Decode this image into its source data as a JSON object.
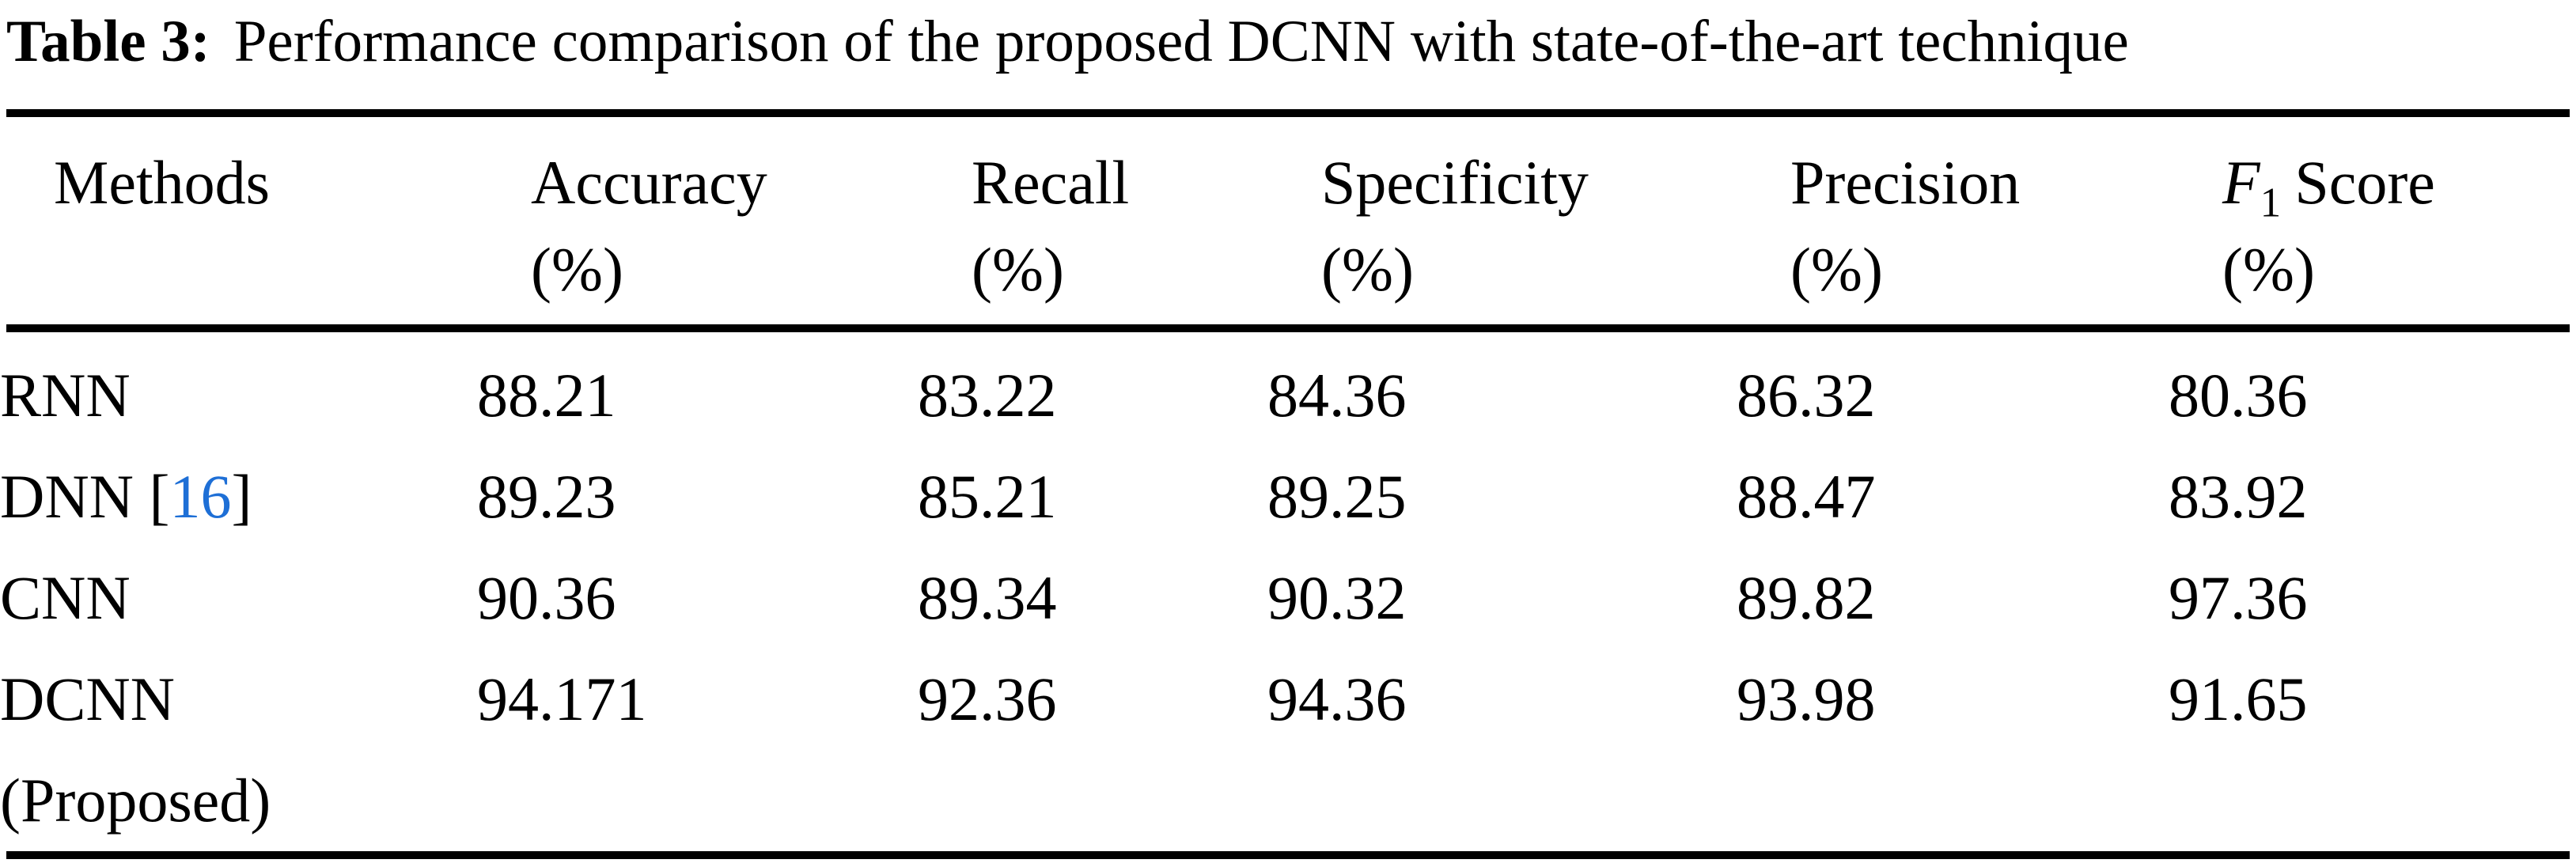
{
  "caption": {
    "label": "Table 3:",
    "text": "Performance comparison of the proposed DCNN with state-of-the-art technique"
  },
  "header": {
    "methods": "Methods",
    "accuracy": "Accuracy",
    "recall": "Recall",
    "specificity": "Specificity",
    "precision": "Precision",
    "f1_letter": "F",
    "f1_sub": "1",
    "f1_word": "Score",
    "unit": "(%)"
  },
  "rows": [
    {
      "method": "RNN",
      "accuracy": "88.21",
      "recall": "83.22",
      "specificity": "84.36",
      "precision": "86.32",
      "f1": "80.36"
    },
    {
      "method": "DNN",
      "cite_open": "[",
      "cite_num": "16",
      "cite_close": "]",
      "accuracy": "89.23",
      "recall": "85.21",
      "specificity": "89.25",
      "precision": "88.47",
      "f1": "83.92"
    },
    {
      "method": "CNN",
      "accuracy": "90.36",
      "recall": "89.34",
      "specificity": "90.32",
      "precision": "89.82",
      "f1": "97.36"
    },
    {
      "method": "DCNN",
      "method_note": "(Proposed)",
      "accuracy": "94.171",
      "recall": "92.36",
      "specificity": "94.36",
      "precision": "93.98",
      "f1": "91.65"
    }
  ],
  "colors": {
    "background": "#FFFFFF",
    "text": "#000000",
    "rule": "#000000",
    "citation_link": "#1E6FD6"
  }
}
